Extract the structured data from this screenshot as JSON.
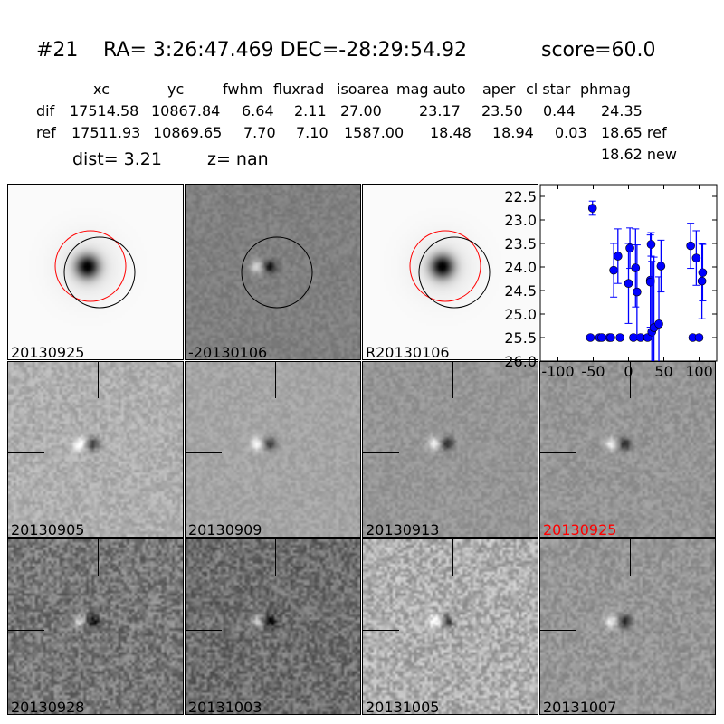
{
  "header": {
    "id": "#21",
    "coords": "RA= 3:26:47.469 DEC=-28:29:54.92",
    "score": "score=60.0"
  },
  "table": {
    "columns": [
      "xc",
      "yc",
      "fwhm",
      "fluxrad",
      "isoarea",
      "mag auto",
      "aper",
      "cl star",
      "phmag"
    ],
    "rows": [
      {
        "label": "dif",
        "values": [
          "17514.58",
          "10867.84",
          "6.64",
          "2.11",
          "27.00",
          "23.17",
          "23.50",
          "0.44",
          "24.35"
        ]
      },
      {
        "label": "ref",
        "values": [
          "17511.93",
          "10869.65",
          "7.70",
          "7.10",
          "1587.00",
          "18.48",
          "18.94",
          "0.03",
          "18.65 ref"
        ]
      }
    ],
    "extra": "18.62 new",
    "dist": "dist=  3.21",
    "z": "z=   nan"
  },
  "panels": [
    {
      "label": "20130925",
      "kind": "stamp-positive",
      "label_color": "#000000"
    },
    {
      "label": "-20130106",
      "kind": "stamp-diff",
      "label_color": "#000000"
    },
    {
      "label": "R20130106",
      "kind": "stamp-positive",
      "label_color": "#000000"
    },
    {
      "label": "20130905",
      "kind": "diff",
      "label_color": "#000000"
    },
    {
      "label": "20130909",
      "kind": "diff",
      "label_color": "#000000"
    },
    {
      "label": "20130913",
      "kind": "diff",
      "label_color": "#000000"
    },
    {
      "label": "20130925",
      "kind": "diff",
      "label_color": "#ff0000"
    },
    {
      "label": "20130928",
      "kind": "diff",
      "label_color": "#000000"
    },
    {
      "label": "20131003",
      "kind": "diff",
      "label_color": "#000000"
    },
    {
      "label": "20131005",
      "kind": "diff",
      "label_color": "#000000"
    },
    {
      "label": "20131007",
      "kind": "diff",
      "label_color": "#000000"
    }
  ],
  "chart_data": {
    "type": "scatter",
    "title": "",
    "xlabel": "",
    "ylabel": "",
    "xlim": [
      -125,
      125
    ],
    "ylim": [
      26.0,
      22.25
    ],
    "y_inverted": true,
    "xticks": [
      "-100",
      "-50",
      "0",
      "50",
      "100"
    ],
    "yticks": [
      "22.5",
      "23.0",
      "23.5",
      "24.0",
      "24.5",
      "25.0",
      "25.5",
      "26.0"
    ],
    "marker_color": "#0000ff",
    "grid": false,
    "points": [
      {
        "x": -51,
        "y": 22.75,
        "err": 0.15
      },
      {
        "x": -54,
        "y": 25.5,
        "err": 0.05
      },
      {
        "x": -41,
        "y": 25.5,
        "err": 0.05
      },
      {
        "x": -38,
        "y": 25.5,
        "err": 0.05
      },
      {
        "x": -27,
        "y": 25.5,
        "err": 0.05
      },
      {
        "x": -25,
        "y": 25.5,
        "err": 0.05
      },
      {
        "x": -12,
        "y": 25.5,
        "err": 0.05
      },
      {
        "x": 7,
        "y": 25.5,
        "err": 0.05
      },
      {
        "x": 17,
        "y": 25.5,
        "err": 0.05
      },
      {
        "x": 27,
        "y": 25.5,
        "err": 0.05
      },
      {
        "x": 91,
        "y": 25.5,
        "err": 0.05
      },
      {
        "x": 100,
        "y": 25.5,
        "err": 0.05
      },
      {
        "x": -21,
        "y": 24.07,
        "err": 0.57
      },
      {
        "x": -15,
        "y": 23.77,
        "err": 0.58
      },
      {
        "x": 0,
        "y": 24.35,
        "err": 0.85
      },
      {
        "x": 2,
        "y": 23.6,
        "err": 0.43
      },
      {
        "x": 10,
        "y": 24.02,
        "err": 0.83
      },
      {
        "x": 12,
        "y": 24.53,
        "err": 1.0
      },
      {
        "x": 31,
        "y": 24.28,
        "err": 1.0
      },
      {
        "x": 32,
        "y": 23.52,
        "err": 0.25
      },
      {
        "x": 31,
        "y": 24.32,
        "err": 1.0
      },
      {
        "x": 33,
        "y": 25.38,
        "err": 1.5
      },
      {
        "x": 36,
        "y": 25.29,
        "err": 1.5
      },
      {
        "x": 43,
        "y": 25.21,
        "err": 1.0
      },
      {
        "x": 46,
        "y": 23.98,
        "err": 0.55
      },
      {
        "x": 88,
        "y": 23.55,
        "err": 0.48
      },
      {
        "x": 96,
        "y": 23.81,
        "err": 0.58
      },
      {
        "x": 105,
        "y": 24.12,
        "err": 0.6
      },
      {
        "x": 104,
        "y": 24.3,
        "err": 0.8
      }
    ]
  }
}
